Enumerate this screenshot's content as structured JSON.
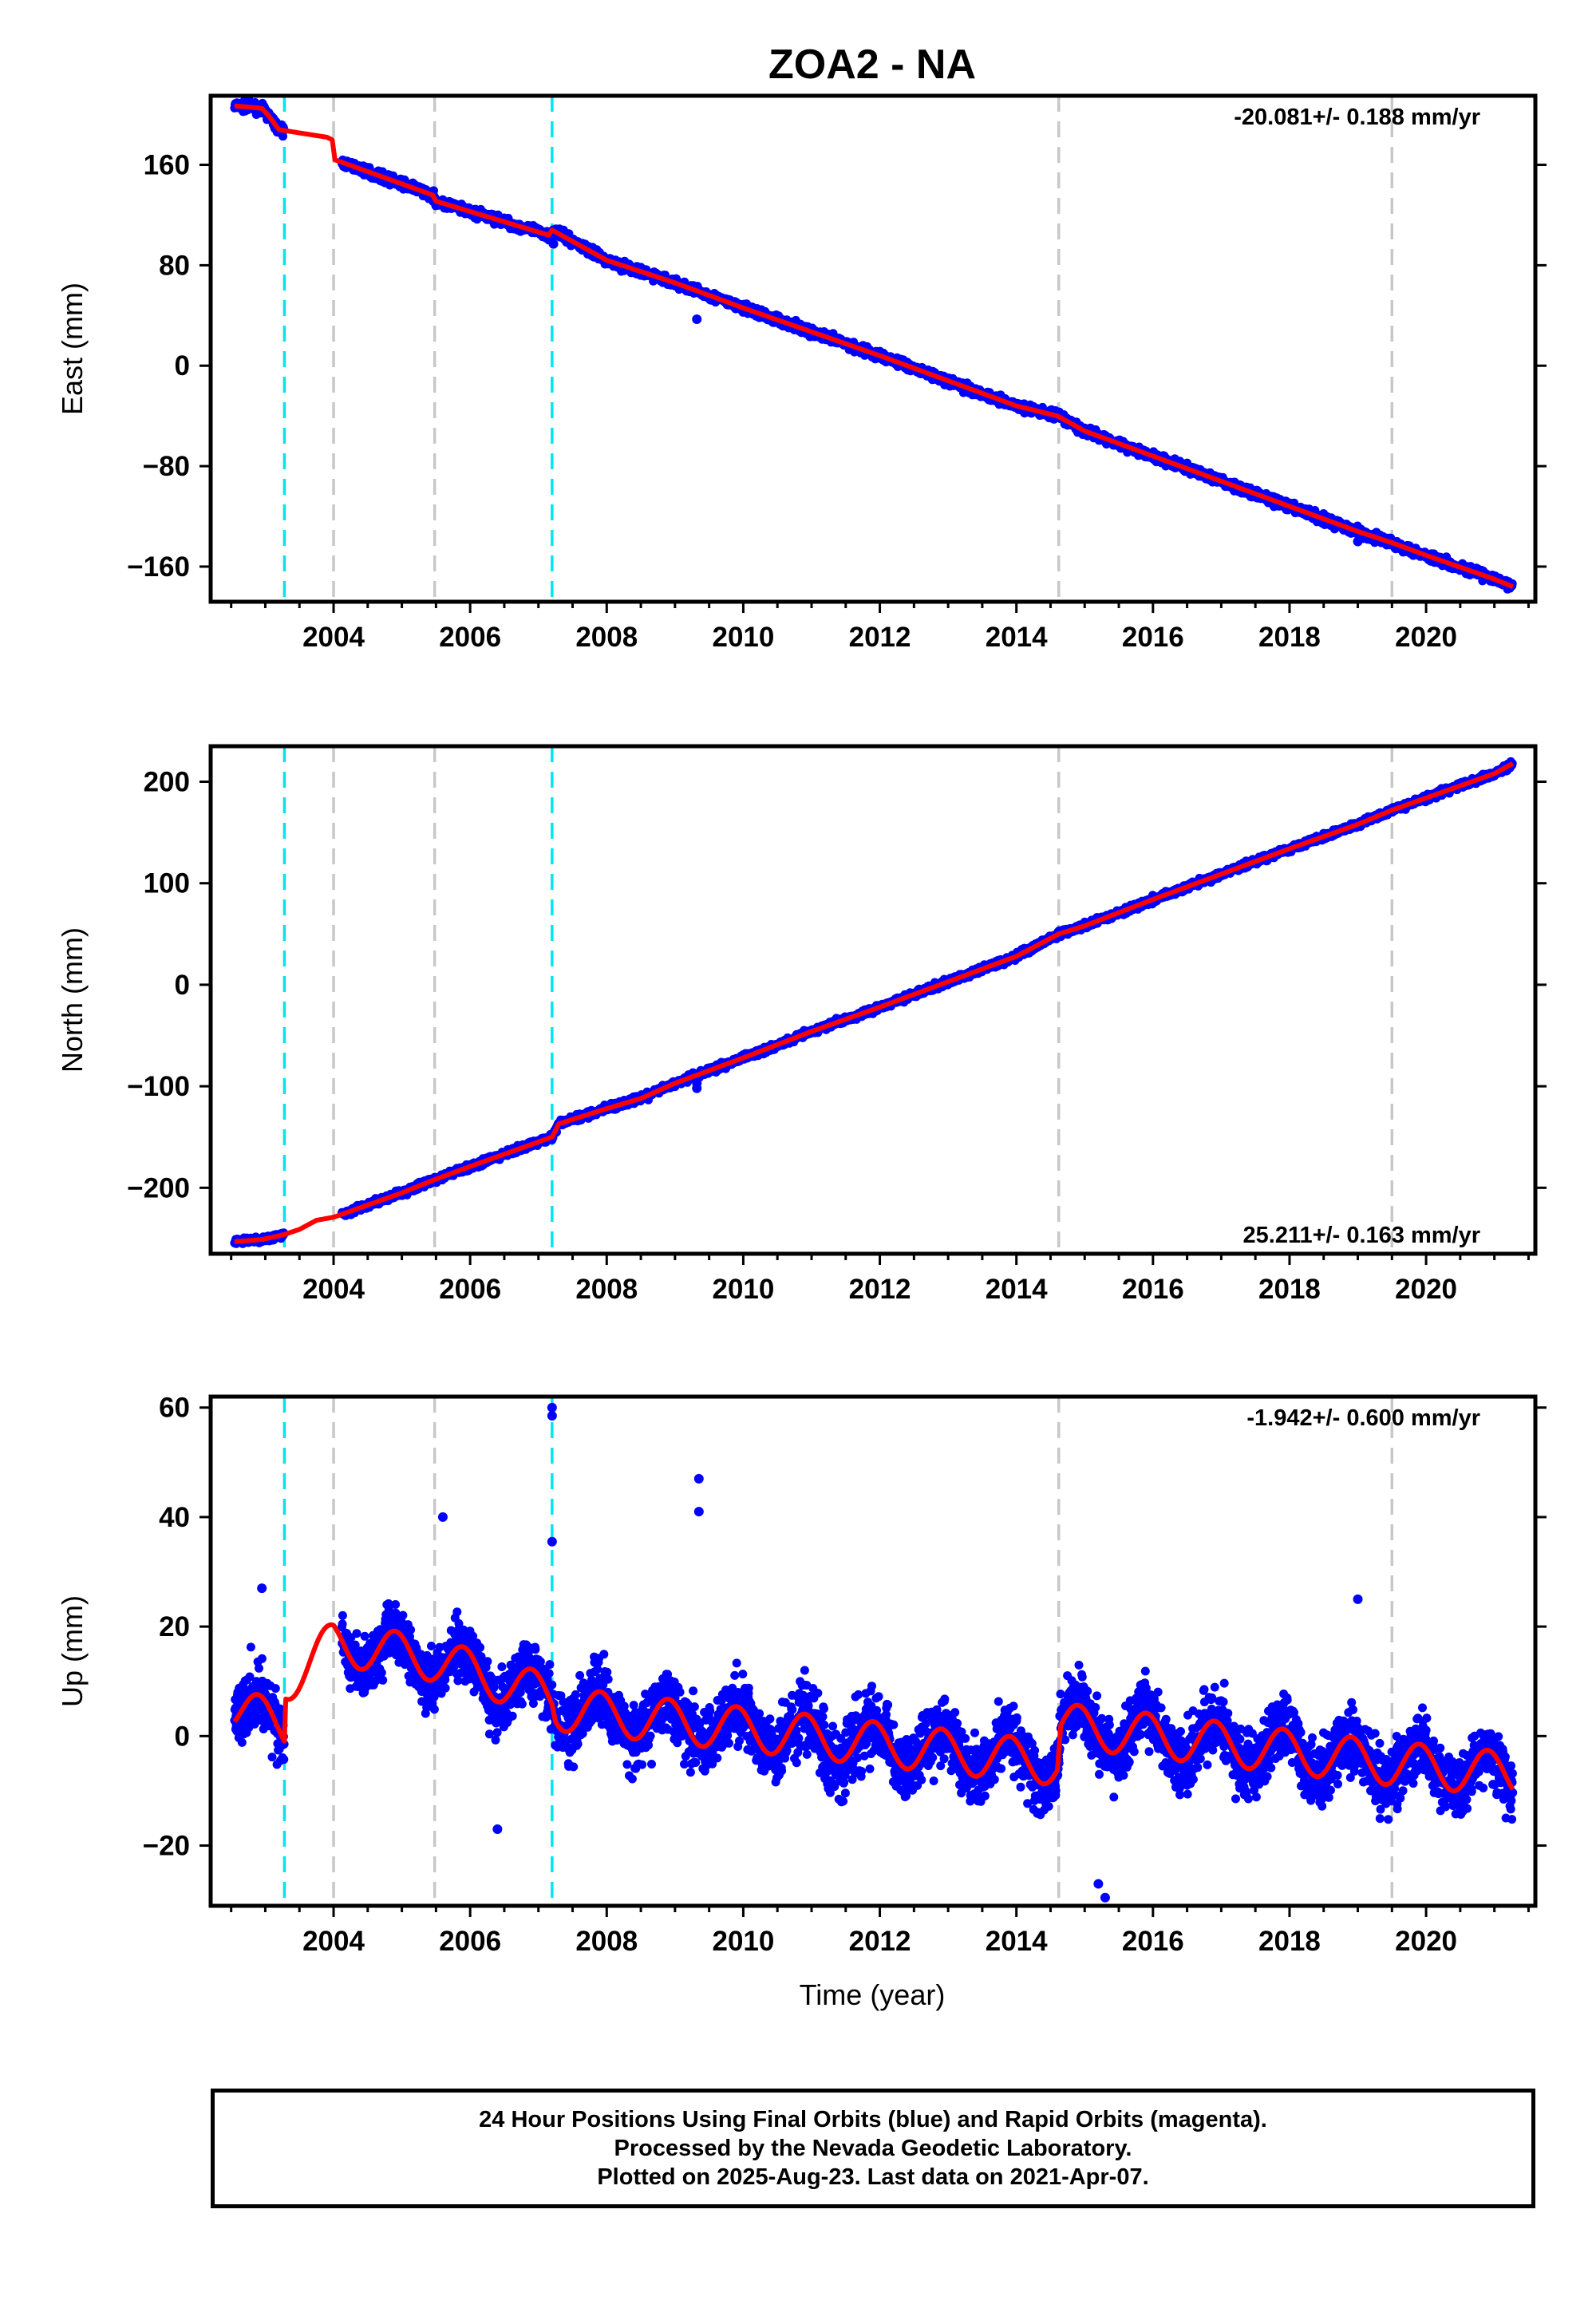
{
  "chart_data": {
    "type": "scatter",
    "title": "ZOA2 - NA",
    "xlabel": "Time (year)",
    "xlim": [
      2002.2,
      2021.6
    ],
    "x_ticks": [
      2004,
      2006,
      2008,
      2010,
      2012,
      2014,
      2016,
      2018,
      2020
    ],
    "x_tick_labels": [
      "2004",
      "2006",
      "2008",
      "2010",
      "2012",
      "2014",
      "2016",
      "2018",
      "2020"
    ],
    "data_start": 2002.55,
    "data_end": 2021.27,
    "colors": {
      "data": "#0000ff",
      "model": "#ff0000",
      "equipment_change": "#c8c8c8",
      "earthquake": "#00e5ee"
    },
    "equipment_change_lines": [
      2004.0,
      2005.48,
      2014.62,
      2019.5
    ],
    "earthquake_lines": [
      2003.28,
      2007.2
    ],
    "panels": [
      {
        "ylabel": "East (mm)",
        "ylim": [
          -188,
          215
        ],
        "y_ticks": [
          -160,
          -80,
          0,
          80,
          160
        ],
        "y_tick_labels": [
          "−160",
          "−80",
          "0",
          "80",
          "160"
        ],
        "rate": "-20.081+/- 0.188 mm/yr",
        "rate_position": "top-right",
        "model": [
          [
            2002.55,
            207
          ],
          [
            2002.95,
            205
          ],
          [
            2003.05,
            199
          ],
          [
            2003.2,
            188
          ],
          [
            2003.9,
            182
          ],
          [
            2003.98,
            180
          ],
          [
            2004.02,
            164
          ],
          [
            2005.45,
            136
          ],
          [
            2005.5,
            131
          ],
          [
            2007.15,
            104
          ],
          [
            2007.2,
            108
          ],
          [
            2008.0,
            84
          ],
          [
            2009.0,
            66
          ],
          [
            2010.0,
            46
          ],
          [
            2011.0,
            27
          ],
          [
            2012.0,
            8
          ],
          [
            2013.0,
            -12
          ],
          [
            2014.0,
            -32
          ],
          [
            2014.6,
            -40
          ],
          [
            2015.0,
            -52
          ],
          [
            2016.0,
            -72
          ],
          [
            2017.0,
            -92
          ],
          [
            2018.0,
            -112
          ],
          [
            2019.0,
            -132
          ],
          [
            2019.5,
            -141
          ],
          [
            2020.0,
            -151
          ],
          [
            2021.0,
            -170
          ],
          [
            2021.27,
            -176
          ]
        ],
        "outliers": [
          [
            2009.32,
            37
          ],
          [
            2019.0,
            -140
          ],
          [
            2007.22,
            97
          ]
        ]
      },
      {
        "ylabel": "North (mm)",
        "ylim": [
          -265,
          235
        ],
        "y_ticks": [
          -200,
          -100,
          0,
          100,
          200
        ],
        "y_tick_labels": [
          "−200",
          "−100",
          "0",
          "100",
          "200"
        ],
        "rate": "25.211+/- 0.163 mm/yr",
        "rate_position": "bottom-right",
        "model": [
          [
            2002.55,
            -253
          ],
          [
            2002.95,
            -251
          ],
          [
            2003.28,
            -246
          ],
          [
            2003.5,
            -241
          ],
          [
            2003.75,
            -232
          ],
          [
            2004.0,
            -229
          ],
          [
            2005.0,
            -205
          ],
          [
            2005.48,
            -192
          ],
          [
            2006.0,
            -179
          ],
          [
            2007.2,
            -150
          ],
          [
            2007.3,
            -137
          ],
          [
            2008.0,
            -122
          ],
          [
            2008.5,
            -112
          ],
          [
            2009.0,
            -97
          ],
          [
            2010.0,
            -72
          ],
          [
            2011.0,
            -46
          ],
          [
            2012.0,
            -22
          ],
          [
            2013.0,
            3
          ],
          [
            2014.0,
            28
          ],
          [
            2014.62,
            50
          ],
          [
            2015.0,
            58
          ],
          [
            2016.0,
            84
          ],
          [
            2017.0,
            109
          ],
          [
            2018.0,
            134
          ],
          [
            2019.0,
            158
          ],
          [
            2019.5,
            172
          ],
          [
            2020.0,
            184
          ],
          [
            2021.0,
            208
          ],
          [
            2021.27,
            218
          ]
        ],
        "outliers": [
          [
            2009.32,
            -97
          ],
          [
            2009.32,
            -102
          ]
        ]
      },
      {
        "ylabel": "Up (mm)",
        "ylim": [
          -31,
          62
        ],
        "y_ticks": [
          -20,
          0,
          20,
          40,
          60
        ],
        "y_tick_labels": [
          "−20",
          "0",
          "20",
          "40",
          "60"
        ],
        "rate": "-1.942+/- 0.600 mm/yr",
        "rate_position": "top-right",
        "model_trend": [
          [
            2002.55,
            5
          ],
          [
            2003.28,
            2
          ],
          [
            2003.3,
            10
          ],
          [
            2004.0,
            17
          ],
          [
            2005.48,
            14
          ],
          [
            2007.2,
            7
          ],
          [
            2007.25,
            5
          ],
          [
            2014.6,
            -5
          ],
          [
            2014.65,
            2
          ],
          [
            2019.5,
            -5
          ],
          [
            2021.27,
            -7
          ]
        ],
        "annual_amplitude": 4,
        "outliers": [
          [
            2007.2,
            60
          ],
          [
            2007.2,
            58.5
          ],
          [
            2009.35,
            47
          ],
          [
            2009.35,
            41
          ],
          [
            2007.2,
            35.5
          ],
          [
            2006.4,
            -17
          ],
          [
            2015.2,
            -27
          ],
          [
            2015.3,
            -29.5
          ],
          [
            2019.0,
            25
          ],
          [
            2005.6,
            40
          ],
          [
            2002.95,
            27
          ]
        ]
      }
    ]
  },
  "footer": {
    "line1": "24 Hour Positions Using Final Orbits (blue) and Rapid Orbits (magenta).",
    "line2": "Processed by the Nevada Geodetic Laboratory.",
    "line3": "Plotted on 2025-Aug-23. Last data on 2021-Apr-07."
  }
}
